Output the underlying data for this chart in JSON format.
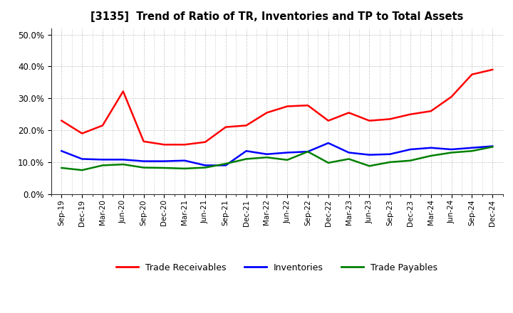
{
  "title": "[3135]  Trend of Ratio of TR, Inventories and TP to Total Assets",
  "x_labels": [
    "Sep-19",
    "Dec-19",
    "Mar-20",
    "Jun-20",
    "Sep-20",
    "Dec-20",
    "Mar-21",
    "Jun-21",
    "Sep-21",
    "Dec-21",
    "Mar-22",
    "Jun-22",
    "Sep-22",
    "Dec-22",
    "Mar-23",
    "Jun-23",
    "Sep-23",
    "Dec-23",
    "Mar-24",
    "Jun-24",
    "Sep-24",
    "Dec-24"
  ],
  "trade_receivables": [
    0.23,
    0.19,
    0.215,
    0.322,
    0.165,
    0.155,
    0.155,
    0.163,
    0.21,
    0.215,
    0.255,
    0.275,
    0.278,
    0.23,
    0.255,
    0.23,
    0.235,
    0.25,
    0.26,
    0.305,
    0.375,
    0.39
  ],
  "inventories": [
    0.135,
    0.11,
    0.108,
    0.108,
    0.103,
    0.103,
    0.105,
    0.09,
    0.09,
    0.135,
    0.125,
    0.13,
    0.133,
    0.16,
    0.13,
    0.123,
    0.125,
    0.14,
    0.145,
    0.14,
    0.145,
    0.15
  ],
  "trade_payables": [
    0.082,
    0.075,
    0.09,
    0.093,
    0.083,
    0.082,
    0.08,
    0.083,
    0.095,
    0.11,
    0.115,
    0.107,
    0.133,
    0.098,
    0.11,
    0.088,
    0.1,
    0.105,
    0.12,
    0.13,
    0.135,
    0.148
  ],
  "tr_color": "#ff0000",
  "inv_color": "#0000ff",
  "tp_color": "#008000",
  "ylim": [
    0.0,
    0.52
  ],
  "yticks": [
    0.0,
    0.1,
    0.2,
    0.3,
    0.4,
    0.5
  ],
  "legend_labels": [
    "Trade Receivables",
    "Inventories",
    "Trade Payables"
  ],
  "background_color": "#ffffff",
  "grid_color": "#999999"
}
